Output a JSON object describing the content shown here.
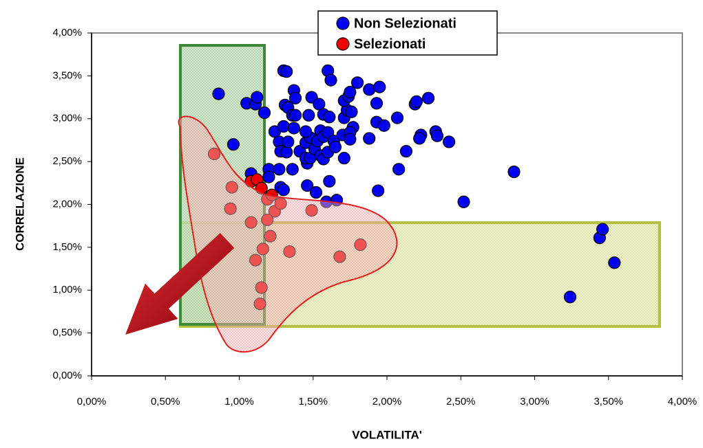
{
  "chart_data": {
    "type": "scatter",
    "xlabel": "VOLATILITA'",
    "ylabel": "CORRELAZIONE",
    "legend": "top",
    "xlim": [
      0,
      4
    ],
    "ylim": [
      0,
      4
    ],
    "xticks": [
      {
        "value": 0,
        "label": "0,00%"
      },
      {
        "value": 0.5,
        "label": "0,50%"
      },
      {
        "value": 1,
        "label": "1,00%"
      },
      {
        "value": 1.5,
        "label": "1,50%"
      },
      {
        "value": 2,
        "label": "2,00%"
      },
      {
        "value": 2.5,
        "label": "2,50%"
      },
      {
        "value": 3,
        "label": "3,00%"
      },
      {
        "value": 3.5,
        "label": "3,50%"
      },
      {
        "value": 4,
        "label": "4,00%"
      }
    ],
    "yticks": [
      {
        "value": 0,
        "label": "0,00%"
      },
      {
        "value": 0.5,
        "label": "0,50%"
      },
      {
        "value": 1,
        "label": "1,00%"
      },
      {
        "value": 1.5,
        "label": "1,50%"
      },
      {
        "value": 2,
        "label": "2,00%"
      },
      {
        "value": 2.5,
        "label": "2,50%"
      },
      {
        "value": 3,
        "label": "3,00%"
      },
      {
        "value": 3.5,
        "label": "3,50%"
      },
      {
        "value": 4,
        "label": "4,00%"
      }
    ],
    "series": [
      {
        "name": "Non Selezionati",
        "color": "#0000ee",
        "x": [
          0.86,
          0.96,
          1.05,
          1.11,
          1.12,
          1.17,
          1.08,
          1.2,
          1.2,
          1.27,
          1.28,
          1.3,
          1.24,
          1.3,
          1.32,
          1.37,
          1.38,
          1.31,
          1.33,
          1.3,
          1.36,
          1.38,
          1.37,
          1.27,
          1.28,
          1.32,
          1.33,
          1.36,
          1.41,
          1.45,
          1.48,
          1.45,
          1.47,
          1.49,
          1.46,
          1.45,
          1.48,
          1.46,
          1.51,
          1.53,
          1.55,
          1.57,
          1.54,
          1.57,
          1.6,
          1.62,
          1.61,
          1.55,
          1.57,
          1.6,
          1.6,
          1.64,
          1.65,
          1.52,
          1.59,
          1.61,
          1.66,
          1.7,
          1.71,
          1.73,
          1.71,
          1.74,
          1.75,
          1.76,
          1.77,
          1.75,
          1.75,
          1.71,
          1.8,
          1.88,
          1.95,
          1.93,
          1.88,
          1.93,
          1.98,
          2.07,
          1.94,
          2.08,
          2.13,
          2.19,
          2.2,
          2.23,
          2.22,
          2.28,
          2.33,
          2.34,
          2.42,
          2.52,
          2.86,
          3.24,
          3.44,
          3.46,
          3.54
        ],
        "values": [
          3.29,
          2.7,
          3.18,
          3.17,
          3.25,
          3.07,
          2.36,
          2.41,
          2.32,
          2.41,
          2.2,
          2.17,
          2.85,
          3.56,
          3.55,
          3.33,
          3.24,
          3.16,
          3.13,
          2.91,
          3.04,
          3.04,
          2.89,
          2.73,
          2.62,
          2.61,
          2.73,
          2.41,
          2.62,
          2.72,
          2.78,
          2.85,
          3.04,
          3.25,
          2.48,
          2.54,
          2.54,
          2.22,
          2.65,
          2.74,
          2.86,
          2.79,
          3.17,
          3.05,
          3.56,
          3.45,
          3.02,
          2.57,
          2.53,
          2.61,
          2.84,
          2.74,
          2.67,
          2.14,
          2.03,
          2.27,
          2.05,
          2.81,
          3.01,
          3.1,
          3.21,
          3.26,
          3.31,
          3.08,
          2.9,
          2.84,
          2.76,
          2.54,
          3.42,
          3.34,
          3.37,
          3.18,
          2.77,
          2.96,
          2.92,
          3.01,
          2.16,
          2.41,
          2.62,
          3.17,
          3.2,
          2.81,
          2.77,
          3.24,
          2.85,
          2.8,
          2.73,
          2.03,
          2.38,
          0.92,
          1.61,
          1.71,
          1.32
        ]
      },
      {
        "name": "Selezionati",
        "color": "#ee0000",
        "x": [
          0.83,
          0.95,
          0.94,
          1.08,
          1.12,
          1.15,
          1.19,
          1.22,
          1.24,
          1.28,
          1.08,
          1.19,
          1.21,
          1.16,
          1.11,
          1.34,
          1.49,
          1.68,
          1.82,
          1.15,
          1.14
        ],
        "values": [
          2.59,
          2.2,
          1.95,
          2.27,
          2.29,
          2.19,
          2.06,
          2.11,
          1.92,
          2.01,
          1.79,
          1.82,
          1.63,
          1.48,
          1.35,
          1.45,
          1.93,
          1.39,
          1.53,
          1.03,
          0.84
        ]
      }
    ]
  }
}
